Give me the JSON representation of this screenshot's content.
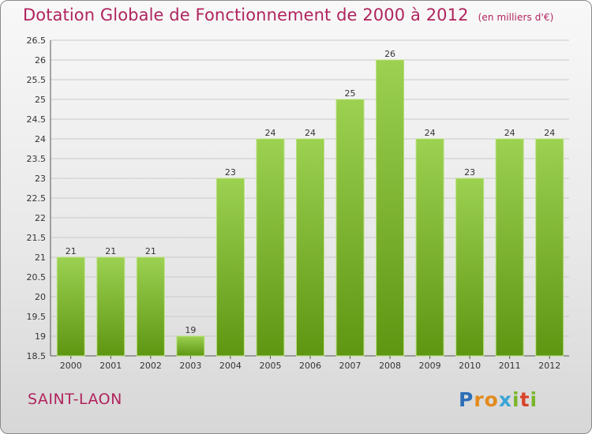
{
  "title": "Dotation Globale de Fonctionnement de 2000 à 2012",
  "subtitle": "(en milliers d'€)",
  "commune": "SAINT-LAON",
  "logo": {
    "letters": [
      "P",
      "r",
      "o",
      "x",
      "i",
      "t",
      "i"
    ],
    "colors": [
      "#2d6fb7",
      "#e38a1c",
      "#e38a1c",
      "#3aa5d6",
      "#7ab52a",
      "#d9452b",
      "#7ab52a"
    ]
  },
  "colors": {
    "bar_light": "#9cd151",
    "bar_dark": "#5e9612",
    "grid": "#c9c9c9",
    "title": "#b0245e"
  },
  "chart_data": {
    "type": "bar",
    "categories": [
      "2000",
      "2001",
      "2002",
      "2003",
      "2004",
      "2005",
      "2006",
      "2007",
      "2008",
      "2009",
      "2010",
      "2011",
      "2012"
    ],
    "values": [
      21,
      21,
      21,
      19,
      23,
      24,
      24,
      25,
      26,
      24,
      23,
      24,
      24
    ],
    "ylim": [
      18.5,
      26.5
    ],
    "yticks": [
      "18.5",
      "19",
      "19.5",
      "20",
      "20.5",
      "21",
      "21.5",
      "22",
      "22.5",
      "23",
      "23.5",
      "24",
      "24.5",
      "25",
      "25.5",
      "26",
      "26.5"
    ],
    "grid": true,
    "title": "Dotation Globale de Fonctionnement de 2000 à 2012",
    "xlabel": "",
    "ylabel": ""
  }
}
